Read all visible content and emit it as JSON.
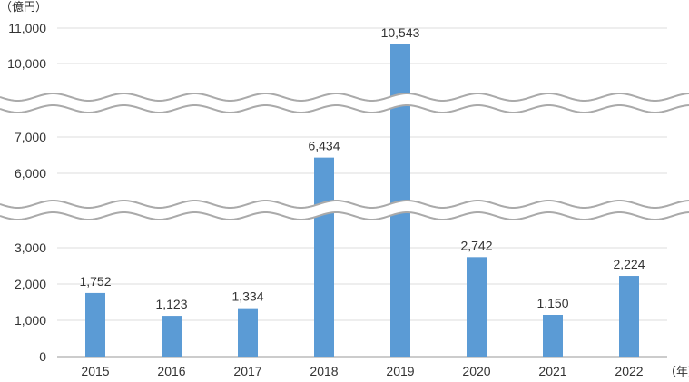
{
  "chart_data": {
    "type": "bar",
    "title": "",
    "y_unit_label": "（億円）",
    "x_unit_label": "（年）",
    "categories": [
      "2015",
      "2016",
      "2017",
      "2018",
      "2019",
      "2020",
      "2021",
      "2022"
    ],
    "values": [
      1752,
      1123,
      1334,
      6434,
      10543,
      2742,
      1150,
      2224
    ],
    "data_labels": [
      "1,752",
      "1,123",
      "1,334",
      "6,434",
      "10,543",
      "2,742",
      "1,150",
      "2,224"
    ],
    "y_axis": {
      "broken": true,
      "segments": [
        {
          "range": [
            0,
            3000
          ],
          "ticks": [
            0,
            1000,
            2000,
            3000
          ]
        },
        {
          "range": [
            6000,
            7000
          ],
          "ticks": [
            6000,
            7000
          ]
        },
        {
          "range": [
            10000,
            11000
          ],
          "ticks": [
            10000,
            11000
          ]
        }
      ],
      "tick_labels": [
        "0",
        "1,000",
        "2,000",
        "3,000",
        "6,000",
        "7,000",
        "10,000",
        "11,000"
      ]
    },
    "grid": true,
    "legend": "none",
    "colors": {
      "bar": "#5b9bd5",
      "grid": "#dddddd",
      "break": "#aaaaaa"
    }
  }
}
